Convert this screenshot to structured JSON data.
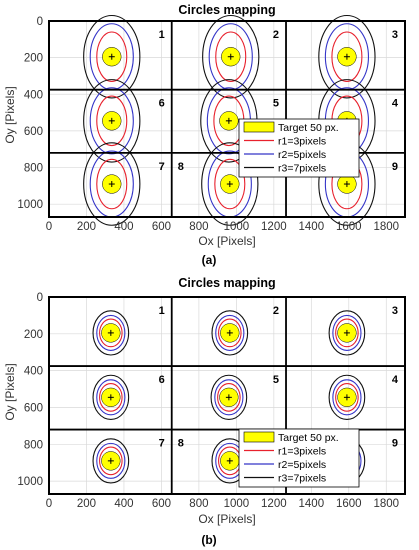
{
  "colors": {
    "target_fill": "#ffff00",
    "target_edge": "#000000",
    "r1": "#e8212d",
    "r2": "#3535c8",
    "r3": "#111111",
    "grid": "#d9d9d9",
    "frame": "#000000"
  },
  "legend": [
    {
      "label": "Target 50 px.",
      "kind": "target"
    },
    {
      "label": "r1=3pixels",
      "kind": "r1"
    },
    {
      "label": "r2=5pixels",
      "kind": "r2"
    },
    {
      "label": "r3=7pixels",
      "kind": "r3"
    }
  ],
  "chart_data": [
    {
      "type": "contour",
      "panel_label": "(a)",
      "title": "Circles mapping",
      "xlabel": "Ox [Pixels]",
      "ylabel": "Oy [Pixels]",
      "xlim": [
        0,
        1900
      ],
      "ylim": [
        1070,
        0
      ],
      "xticks": [
        0,
        200,
        400,
        600,
        800,
        1000,
        1200,
        1400,
        1600,
        1800
      ],
      "yticks": [
        0,
        200,
        400,
        600,
        800,
        1000
      ],
      "grid": true,
      "legend_position": "center-right",
      "cell_grid": {
        "x_lines": [
          655,
          1265
        ],
        "y_lines": [
          375,
          720
        ]
      },
      "cells": [
        {
          "number": "1",
          "label_pos": [
            1220,
            375
          ],
          "target": [
            335,
            195
          ]
        },
        {
          "number": "2",
          "label_pos": [
            1220,
            375
          ],
          "target": [
            970,
            195
          ]
        },
        {
          "number": "3",
          "label_pos": [
            1220,
            375
          ],
          "target": [
            1590,
            195
          ]
        },
        {
          "number": "6",
          "label_pos": [
            1220,
            375
          ],
          "target": [
            335,
            545
          ]
        },
        {
          "number": "5",
          "label_pos": [
            1220,
            375
          ],
          "target": [
            960,
            545
          ]
        },
        {
          "number": "4",
          "label_pos": [
            1220,
            375
          ],
          "target": [
            1590,
            545
          ]
        },
        {
          "number": "7",
          "label_pos": [
            1220,
            375
          ],
          "target": [
            335,
            890
          ]
        },
        {
          "number": "8",
          "label_pos": [
            1220,
            375
          ],
          "target": [
            965,
            890
          ]
        },
        {
          "number": "9",
          "label_pos": [
            1220,
            375
          ],
          "target": [
            1590,
            890
          ]
        }
      ],
      "target_radius": 50,
      "contour_semi_axes": {
        "r1": [
          80,
          135
        ],
        "r2": [
          115,
          180
        ],
        "r3": [
          150,
          225
        ]
      }
    },
    {
      "type": "contour",
      "panel_label": "(b)",
      "title": "Circles mapping",
      "xlabel": "Ox [Pixels]",
      "ylabel": "Oy [Pixels]",
      "xlim": [
        0,
        1900
      ],
      "ylim": [
        1070,
        0
      ],
      "xticks": [
        0,
        200,
        400,
        600,
        800,
        1000,
        1200,
        1400,
        1600,
        1800
      ],
      "yticks": [
        0,
        200,
        400,
        600,
        800,
        1000
      ],
      "grid": true,
      "legend_position": "center-right",
      "cell_grid": {
        "x_lines": [
          655,
          1265
        ],
        "y_lines": [
          375,
          720
        ]
      },
      "cells": [
        {
          "number": "1",
          "label_pos": [
            1220,
            375
          ],
          "target": [
            330,
            195
          ]
        },
        {
          "number": "2",
          "label_pos": [
            1220,
            375
          ],
          "target": [
            965,
            195
          ]
        },
        {
          "number": "3",
          "label_pos": [
            1220,
            375
          ],
          "target": [
            1590,
            195
          ]
        },
        {
          "number": "6",
          "label_pos": [
            1220,
            375
          ],
          "target": [
            330,
            545
          ]
        },
        {
          "number": "5",
          "label_pos": [
            1220,
            375
          ],
          "target": [
            960,
            545
          ]
        },
        {
          "number": "4",
          "label_pos": [
            1220,
            375
          ],
          "target": [
            1590,
            545
          ]
        },
        {
          "number": "7",
          "label_pos": [
            1220,
            375
          ],
          "target": [
            330,
            890
          ]
        },
        {
          "number": "8",
          "label_pos": [
            1220,
            375
          ],
          "target": [
            965,
            890
          ]
        },
        {
          "number": "9",
          "label_pos": [
            1220,
            375
          ],
          "target": [
            1590,
            890
          ]
        }
      ],
      "target_radius": 50,
      "contour_semi_axes": {
        "r1": [
          60,
          75
        ],
        "r2": [
          75,
          95
        ],
        "r3": [
          95,
          120
        ]
      }
    }
  ]
}
